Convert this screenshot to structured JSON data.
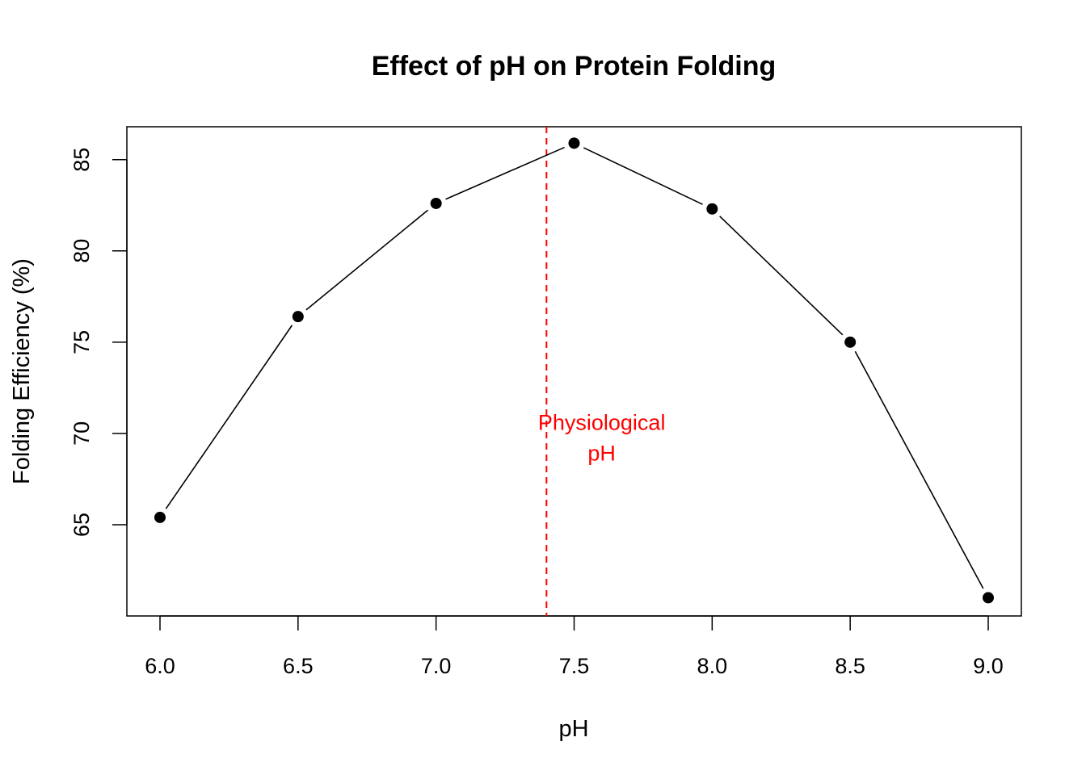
{
  "chart_data": {
    "type": "line",
    "title": "Effect of pH on Protein Folding",
    "xlabel": "pH",
    "ylabel": "Folding Efficiency (%)",
    "x": [
      6.0,
      6.5,
      7.0,
      7.5,
      8.0,
      8.5,
      9.0
    ],
    "series": [
      {
        "values": [
          65.4,
          76.4,
          82.6,
          85.9,
          82.3,
          75.0,
          61.0
        ]
      }
    ],
    "xlim": [
      5.88,
      9.12
    ],
    "ylim": [
      60.0,
      86.8
    ],
    "x_ticks": [
      6.0,
      6.5,
      7.0,
      7.5,
      8.0,
      8.5,
      9.0
    ],
    "x_tick_labels": [
      "6.0",
      "6.5",
      "7.0",
      "7.5",
      "8.0",
      "8.5",
      "9.0"
    ],
    "y_ticks": [
      65,
      70,
      75,
      80,
      85
    ],
    "y_tick_labels": [
      "65",
      "70",
      "75",
      "80",
      "85"
    ],
    "grid": false,
    "line_color": "#000000",
    "point_color": "#000000",
    "reference_line": {
      "x": 7.4,
      "style": "dashed",
      "color": "#ff0000"
    },
    "annotation": {
      "lines": [
        "Physiological",
        "pH"
      ],
      "x": 7.6,
      "y": 70.2,
      "color": "#ff0000"
    }
  }
}
